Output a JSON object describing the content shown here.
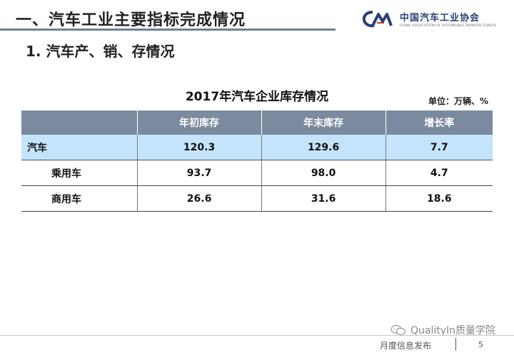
{
  "header": {
    "title": "一、汽车工业主要指标完成情况",
    "logo_cn": "中国汽车工业协会",
    "logo_en": "CHINA ASSOCIATION OF AUTOMOBILE MANUFACTURERS"
  },
  "section": {
    "subtitle": "1. 汽车产、销、存情况"
  },
  "table": {
    "title": "2017年汽车企业库存情况",
    "unit": "单位：万辆、%",
    "headers": [
      "",
      "年初库存",
      "年末库存",
      "增长率"
    ],
    "rows": [
      {
        "name": "汽车",
        "start": "120.3",
        "end": "129.6",
        "growth": "7.7"
      },
      {
        "name": "乘用车",
        "start": "93.7",
        "end": "98.0",
        "growth": "4.7"
      },
      {
        "name": "商用车",
        "start": "26.6",
        "end": "31.6",
        "growth": "18.6"
      }
    ]
  },
  "watermark": {
    "text": "QualityIn质量学院"
  },
  "footer": {
    "label": "月度信息发布",
    "page": "5"
  },
  "colors": {
    "header_rule": "#6e7f93",
    "table_header_bg": "#7b8a9e",
    "highlight_row_bg": "#c4e4fb",
    "logo_text": "#2c3e73"
  },
  "icons": {
    "logo": "caam-logo",
    "watermark": "wechat-icon"
  }
}
